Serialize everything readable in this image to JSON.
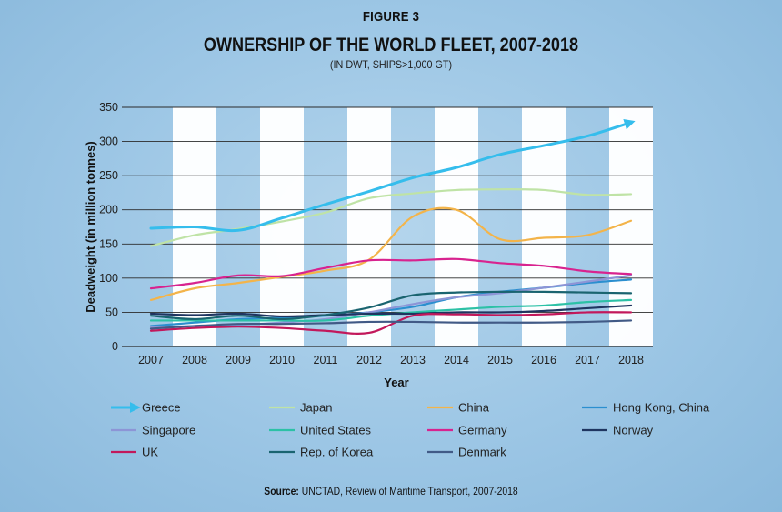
{
  "figure_label": "FIGURE 3",
  "source": {
    "prefix": "Source:",
    "text": "UNCTAD, Review of Maritime Transport, 2007-2018"
  },
  "colors": {
    "Greece": "#35bdec",
    "Japan": "#bfe3a6",
    "China": "#f3b44a",
    "Hong Kong, China": "#2b8fcf",
    "Singapore": "#8d95d6",
    "United States": "#2cc1a6",
    "Germany": "#d8238f",
    "Norway": "#1f3560",
    "UK": "#c2185b",
    "Rep. of Korea": "#1a6470",
    "Denmark": "#415a86"
  },
  "chart_data": {
    "type": "line",
    "title": "OWNERSHIP OF THE WORLD FLEET, 2007-2018",
    "subtitle": "(IN DWT, SHIPS>1,000 GT)",
    "xlabel": "Year",
    "ylabel": "Deadweight (in million tonnes)",
    "ylim": [
      0,
      350
    ],
    "yticks": [
      0,
      50,
      100,
      150,
      200,
      250,
      300,
      350
    ],
    "grid": true,
    "legend_position": "bottom",
    "x": [
      "2007",
      "2008",
      "2009",
      "2010",
      "2011",
      "2012",
      "2013",
      "2014",
      "2015",
      "2016",
      "2017",
      "2018"
    ],
    "series": [
      {
        "name": "Greece",
        "values": [
          173,
          175,
          170,
          188,
          208,
          227,
          247,
          262,
          281,
          294,
          308,
          328
        ]
      },
      {
        "name": "Japan",
        "values": [
          147,
          163,
          172,
          183,
          196,
          217,
          224,
          229,
          230,
          229,
          222,
          223
        ]
      },
      {
        "name": "China",
        "values": [
          68,
          85,
          93,
          102,
          111,
          127,
          190,
          200,
          157,
          159,
          163,
          184
        ]
      },
      {
        "name": "Hong Kong, China",
        "values": [
          30,
          35,
          40,
          42,
          45,
          50,
          58,
          72,
          80,
          86,
          93,
          98
        ]
      },
      {
        "name": "Singapore",
        "values": [
          28,
          30,
          32,
          35,
          40,
          50,
          62,
          72,
          78,
          86,
          95,
          104
        ]
      },
      {
        "name": "United States",
        "values": [
          38,
          38,
          38,
          38,
          38,
          45,
          50,
          54,
          58,
          60,
          65,
          68
        ]
      },
      {
        "name": "Germany",
        "values": [
          85,
          93,
          104,
          103,
          115,
          126,
          126,
          128,
          122,
          118,
          110,
          106
        ]
      },
      {
        "name": "Norway",
        "values": [
          48,
          46,
          48,
          44,
          46,
          48,
          48,
          50,
          50,
          52,
          56,
          60
        ]
      },
      {
        "name": "UK",
        "values": [
          23,
          27,
          29,
          27,
          23,
          20,
          45,
          47,
          46,
          47,
          50,
          50
        ]
      },
      {
        "name": "Rep. of Korea",
        "values": [
          45,
          40,
          45,
          40,
          46,
          57,
          75,
          79,
          80,
          80,
          79,
          78
        ]
      },
      {
        "name": "Denmark",
        "values": [
          26,
          30,
          33,
          33,
          34,
          36,
          36,
          35,
          35,
          35,
          36,
          38
        ]
      }
    ]
  }
}
